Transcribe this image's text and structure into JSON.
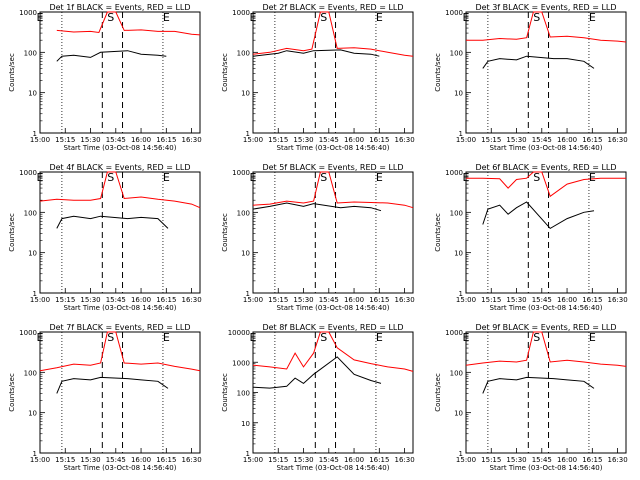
{
  "figure": {
    "xlabel": "Start Time (03-Oct-08 14:56:40)",
    "ylabel": "Counts/sec",
    "x_ticks": [
      "15:00",
      "15:15",
      "15:30",
      "15:45",
      "16:00",
      "16:15",
      "16:30"
    ],
    "colors": {
      "events": "#000000",
      "lld": "#ff0000",
      "axes": "#000000",
      "background": "#ffffff"
    },
    "markers": {
      "E1": {
        "label": "E",
        "time": "15:00"
      },
      "S": {
        "label": "S",
        "time": "15:42"
      },
      "E2": {
        "label": "E",
        "time": "16:15"
      },
      "dotted_times": [
        "15:13",
        "16:13"
      ],
      "dashed_times": [
        "15:37",
        "15:49"
      ]
    }
  },
  "chart_data": [
    {
      "type": "line",
      "title": "Det 1f BLACK = Events, RED = LLD",
      "xlabel": "Start Time (03-Oct-08 14:56:40)",
      "ylabel": "Counts/sec",
      "xlim": [
        "15:00",
        "16:35"
      ],
      "ylim": [
        1,
        1000
      ],
      "y_ticks": [
        "1",
        "10",
        "100",
        "1000"
      ],
      "log_y": true,
      "series": [
        {
          "x": [
            "15:10",
            "15:20",
            "15:30",
            "15:35",
            "15:40",
            "15:45",
            "15:50",
            "16:00",
            "16:10",
            "16:20",
            "16:30",
            "16:35"
          ],
          "values": [
            350,
            320,
            330,
            310,
            1000,
            1000,
            350,
            360,
            330,
            330,
            280,
            270
          ]
        },
        {
          "x": [
            "15:10",
            "15:13",
            "15:20",
            "15:30",
            "15:36",
            "15:52",
            "16:00",
            "16:10",
            "16:15"
          ],
          "values": [
            60,
            80,
            85,
            75,
            100,
            110,
            90,
            85,
            80
          ]
        }
      ]
    },
    {
      "type": "line",
      "title": "Det 2f BLACK = Events, RED = LLD",
      "xlabel": "Start Time (03-Oct-08 14:56:40)",
      "ylabel": "Counts/sec",
      "xlim": [
        "15:00",
        "16:35"
      ],
      "ylim": [
        1,
        1000
      ],
      "y_ticks": [
        "1",
        "10",
        "100",
        "1000"
      ],
      "log_y": true,
      "series": [
        {
          "x": [
            "15:00",
            "15:10",
            "15:20",
            "15:30",
            "15:35",
            "15:40",
            "15:45",
            "15:50",
            "16:00",
            "16:10",
            "16:20",
            "16:30",
            "16:35"
          ],
          "values": [
            90,
            100,
            125,
            110,
            120,
            1000,
            1000,
            125,
            130,
            120,
            100,
            85,
            80
          ]
        },
        {
          "x": [
            "15:00",
            "15:15",
            "15:20",
            "15:30",
            "15:36",
            "15:52",
            "16:00",
            "16:10",
            "16:15"
          ],
          "values": [
            80,
            95,
            110,
            95,
            110,
            115,
            95,
            90,
            80
          ]
        }
      ]
    },
    {
      "type": "line",
      "title": "Det 3f BLACK = Events, RED = LLD",
      "xlabel": "Start Time (03-Oct-08 14:56:40)",
      "ylabel": "Counts/sec",
      "xlim": [
        "15:00",
        "16:35"
      ],
      "ylim": [
        1,
        1000
      ],
      "y_ticks": [
        "1",
        "10",
        "100",
        "1000"
      ],
      "log_y": true,
      "series": [
        {
          "x": [
            "15:00",
            "15:10",
            "15:20",
            "15:30",
            "15:36",
            "15:40",
            "15:45",
            "15:50",
            "16:00",
            "16:10",
            "16:20",
            "16:30",
            "16:35"
          ],
          "values": [
            200,
            200,
            220,
            210,
            230,
            1000,
            1000,
            240,
            250,
            230,
            200,
            190,
            180
          ]
        },
        {
          "x": [
            "15:10",
            "15:13",
            "15:20",
            "15:30",
            "15:36",
            "15:52",
            "16:00",
            "16:10",
            "16:16"
          ],
          "values": [
            40,
            60,
            70,
            65,
            80,
            70,
            70,
            60,
            40
          ]
        }
      ]
    },
    {
      "type": "line",
      "title": "Det 4f BLACK = Events, RED = LLD",
      "xlabel": "Start Time (03-Oct-08 14:56:40)",
      "ylabel": "Counts/sec",
      "xlim": [
        "15:00",
        "16:35"
      ],
      "ylim": [
        1,
        1000
      ],
      "y_ticks": [
        "1",
        "10",
        "100",
        "1000"
      ],
      "log_y": true,
      "series": [
        {
          "x": [
            "15:00",
            "15:10",
            "15:20",
            "15:30",
            "15:36",
            "15:40",
            "15:45",
            "15:50",
            "16:00",
            "16:10",
            "16:20",
            "16:30",
            "16:35"
          ],
          "values": [
            190,
            210,
            200,
            200,
            220,
            1000,
            1000,
            220,
            240,
            210,
            190,
            160,
            130
          ]
        },
        {
          "x": [
            "15:10",
            "15:13",
            "15:20",
            "15:30",
            "15:36",
            "15:52",
            "16:00",
            "16:10",
            "16:16"
          ],
          "values": [
            40,
            70,
            80,
            70,
            80,
            70,
            75,
            70,
            40
          ]
        }
      ]
    },
    {
      "type": "line",
      "title": "Det 5f BLACK = Events, RED = LLD",
      "xlabel": "Start Time (03-Oct-08 14:56:40)",
      "ylabel": "Counts/sec",
      "xlim": [
        "15:00",
        "16:35"
      ],
      "ylim": [
        1,
        1000
      ],
      "y_ticks": [
        "1",
        "10",
        "100",
        "1000"
      ],
      "log_y": true,
      "series": [
        {
          "x": [
            "15:00",
            "15:10",
            "15:20",
            "15:30",
            "15:36",
            "15:40",
            "15:45",
            "15:50",
            "16:00",
            "16:10",
            "16:20",
            "16:30",
            "16:35"
          ],
          "values": [
            150,
            160,
            190,
            170,
            190,
            1000,
            1000,
            170,
            180,
            175,
            170,
            150,
            130
          ]
        },
        {
          "x": [
            "15:00",
            "15:10",
            "15:20",
            "15:30",
            "15:36",
            "15:52",
            "16:00",
            "16:10",
            "16:16"
          ],
          "values": [
            120,
            140,
            170,
            140,
            165,
            130,
            140,
            130,
            110
          ]
        }
      ]
    },
    {
      "type": "line",
      "title": "Det 6f BLACK = Events, RED = LLD",
      "xlabel": "Start Time (03-Oct-08 14:56:40)",
      "ylabel": "Counts/sec",
      "xlim": [
        "15:00",
        "16:35"
      ],
      "ylim": [
        1,
        1000
      ],
      "y_ticks": [
        "1",
        "10",
        "100",
        "1000"
      ],
      "log_y": true,
      "series": [
        {
          "x": [
            "15:00",
            "15:10",
            "15:20",
            "15:25",
            "15:30",
            "15:36",
            "15:40",
            "15:45",
            "15:50",
            "16:00",
            "16:10",
            "16:20",
            "16:30",
            "16:35"
          ],
          "values": [
            700,
            700,
            680,
            400,
            650,
            700,
            1000,
            1000,
            250,
            500,
            650,
            700,
            700,
            700
          ]
        },
        {
          "x": [
            "15:10",
            "15:13",
            "15:20",
            "15:25",
            "15:30",
            "15:36",
            "15:50",
            "16:00",
            "16:10",
            "16:16"
          ],
          "values": [
            50,
            120,
            150,
            90,
            130,
            180,
            40,
            70,
            100,
            110
          ]
        }
      ]
    },
    {
      "type": "line",
      "title": "Det 7f BLACK = Events, RED = LLD",
      "xlabel": "Start Time (03-Oct-08 14:56:40)",
      "ylabel": "Counts/sec",
      "xlim": [
        "15:00",
        "16:35"
      ],
      "ylim": [
        1,
        1000
      ],
      "y_ticks": [
        "1",
        "10",
        "100",
        "1000"
      ],
      "log_y": true,
      "series": [
        {
          "x": [
            "15:00",
            "15:10",
            "15:20",
            "15:30",
            "15:36",
            "15:40",
            "15:45",
            "15:50",
            "16:00",
            "16:10",
            "16:20",
            "16:30",
            "16:35"
          ],
          "values": [
            110,
            130,
            160,
            150,
            170,
            1000,
            1000,
            170,
            160,
            170,
            140,
            120,
            110
          ]
        },
        {
          "x": [
            "15:10",
            "15:13",
            "15:20",
            "15:30",
            "15:36",
            "15:52",
            "16:00",
            "16:10",
            "16:16"
          ],
          "values": [
            30,
            60,
            70,
            65,
            75,
            70,
            65,
            60,
            40
          ]
        }
      ]
    },
    {
      "type": "line",
      "title": "Det 8f BLACK = Events, RED = LLD",
      "xlabel": "Start Time (03-Oct-08 14:56:40)",
      "ylabel": "Counts/sec",
      "xlim": [
        "15:00",
        "16:35"
      ],
      "ylim": [
        1,
        10000
      ],
      "y_ticks": [
        "1",
        "10",
        "100",
        "1000",
        "10000"
      ],
      "log_y": true,
      "series": [
        {
          "x": [
            "15:00",
            "15:10",
            "15:20",
            "15:25",
            "15:30",
            "15:36",
            "15:40",
            "15:45",
            "15:50",
            "16:00",
            "16:10",
            "16:20",
            "16:30",
            "16:35"
          ],
          "values": [
            800,
            700,
            600,
            2000,
            700,
            2000,
            10000,
            10000,
            3000,
            1200,
            900,
            700,
            600,
            500
          ]
        },
        {
          "x": [
            "15:00",
            "15:10",
            "15:20",
            "15:25",
            "15:30",
            "15:36",
            "15:50",
            "16:00",
            "16:10",
            "16:16"
          ],
          "values": [
            150,
            140,
            160,
            300,
            200,
            400,
            1500,
            400,
            250,
            200
          ]
        }
      ]
    },
    {
      "type": "line",
      "title": "Det 9f BLACK = Events, RED = LLD",
      "xlabel": "Start Time (03-Oct-08 14:56:40)",
      "ylabel": "Counts/sec",
      "xlim": [
        "15:00",
        "16:35"
      ],
      "ylim": [
        1,
        1000
      ],
      "y_ticks": [
        "1",
        "10",
        "100",
        "1000"
      ],
      "log_y": true,
      "series": [
        {
          "x": [
            "15:00",
            "15:10",
            "15:20",
            "15:30",
            "15:36",
            "15:40",
            "15:45",
            "15:50",
            "16:00",
            "16:10",
            "16:20",
            "16:30",
            "16:35"
          ],
          "values": [
            150,
            170,
            190,
            180,
            200,
            1000,
            1000,
            180,
            200,
            180,
            160,
            150,
            140
          ]
        },
        {
          "x": [
            "15:10",
            "15:13",
            "15:20",
            "15:30",
            "15:36",
            "15:52",
            "16:00",
            "16:10",
            "16:16"
          ],
          "values": [
            30,
            60,
            70,
            65,
            75,
            70,
            65,
            60,
            40
          ]
        }
      ]
    }
  ]
}
